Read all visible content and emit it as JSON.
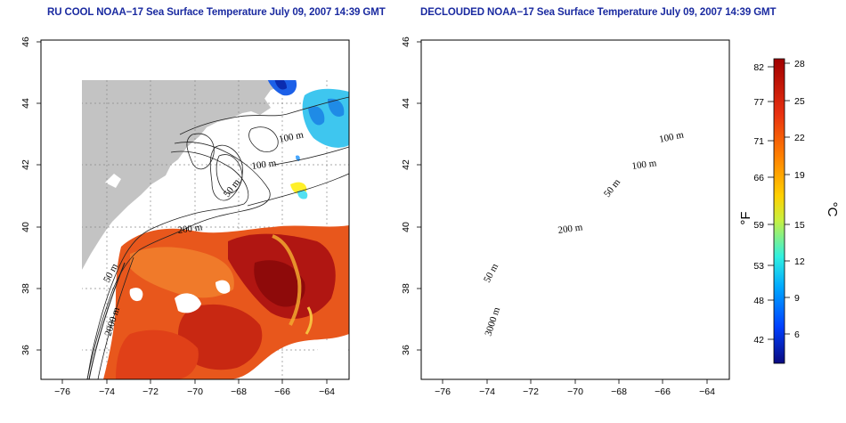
{
  "maps": [
    {
      "title": "RU COOL NOAA−17 Sea Surface Temperature July 09, 2007 14:39 GMT",
      "contour_labels": [
        "100 m",
        "100 m",
        "50 m",
        "200 m",
        "50 m",
        "2000 m"
      ]
    },
    {
      "title": "DECLOUDED NOAA−17 Sea Surface Temperature July 09, 2007 14:39 GMT",
      "contour_labels": [
        "100 m",
        "100 m",
        "50 m",
        "200 m",
        "50 m",
        "3000 m"
      ]
    }
  ],
  "axes": {
    "x_ticks": [
      "−76",
      "−74",
      "−72",
      "−70",
      "−68",
      "−66",
      "−64"
    ],
    "y_ticks": [
      "46",
      "44",
      "42",
      "40",
      "38",
      "36"
    ],
    "lon_range": [
      -77,
      -63
    ],
    "lat_range": [
      35,
      46
    ]
  },
  "colorbar": {
    "fahrenheit_ticks": [
      "82",
      "77",
      "71",
      "66",
      "59",
      "53",
      "48",
      "42"
    ],
    "celsius_ticks": [
      "28",
      "25",
      "22",
      "19",
      "15",
      "12",
      "9",
      "6"
    ],
    "fahrenheit_unit": "°F",
    "celsius_unit": "°C",
    "colors": [
      "#0a0a80",
      "#0040ff",
      "#00a8ff",
      "#30f0e0",
      "#c8f040",
      "#ffd000",
      "#ff8000",
      "#e83010",
      "#a00000"
    ]
  },
  "colors": {
    "land": "#c3c3c3",
    "title": "#1a2aa0",
    "sst_warm": "#e8501a",
    "sst_hot": "#a00c0c"
  }
}
